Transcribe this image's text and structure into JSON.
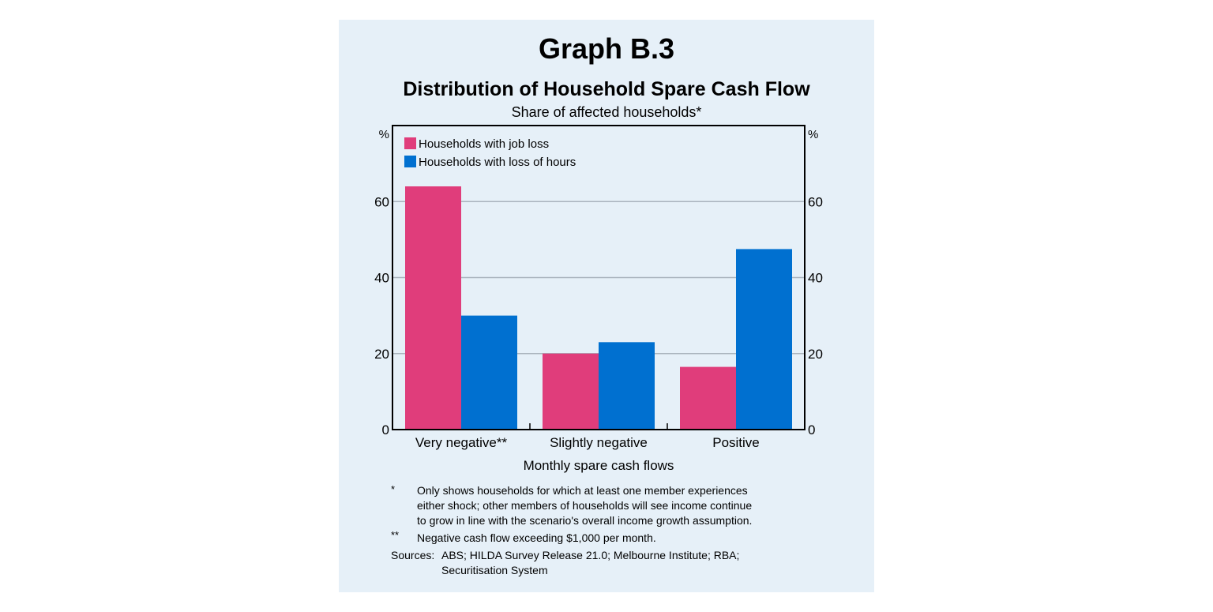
{
  "graph_number": "Graph B.3",
  "chart_data": {
    "type": "bar",
    "title": "Distribution of Household Spare Cash Flow",
    "subtitle": "Share of affected households*",
    "xlabel": "Monthly spare cash flows",
    "ylabel_left": "%",
    "ylabel_right": "%",
    "ylim": [
      0,
      80
    ],
    "yticks": [
      0,
      20,
      40,
      60
    ],
    "grid": true,
    "legend_position": "top-left",
    "categories": [
      "Very negative**",
      "Slightly negative",
      "Positive"
    ],
    "series": [
      {
        "name": "Households with job loss",
        "color": "#e03d7b",
        "values": [
          64,
          20,
          16.5
        ]
      },
      {
        "name": "Households with loss of hours",
        "color": "#0070d0",
        "values": [
          30,
          23,
          47.5
        ]
      }
    ]
  },
  "notes": [
    {
      "mark": "*",
      "lines": [
        "Only shows households for which at least one member experiences",
        "either shock; other members of households will see income continue",
        "to grow in line with the scenario's overall income growth assumption."
      ]
    },
    {
      "mark": "**",
      "lines": [
        "Negative cash flow exceeding $1,000 per month."
      ]
    }
  ],
  "sources": {
    "label": "Sources:",
    "lines": [
      "ABS; HILDA Survey Release 21.0; Melbourne Institute; RBA;",
      "Securitisation System"
    ]
  }
}
